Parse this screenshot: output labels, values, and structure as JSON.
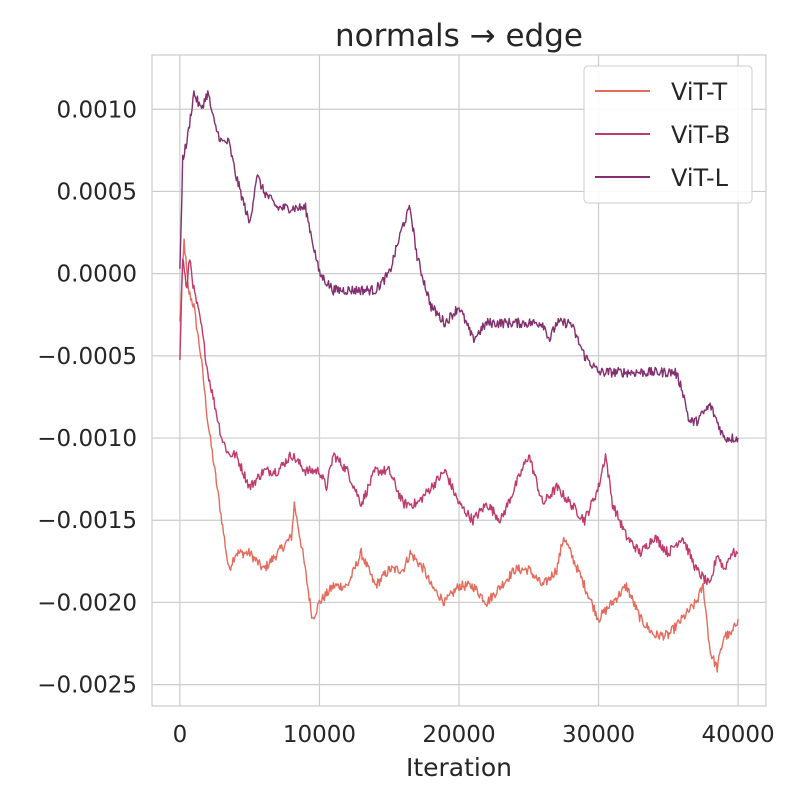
{
  "chart_data": {
    "type": "line",
    "title": "normals → edge",
    "xlabel": "Iteration",
    "ylabel": "",
    "xlim": [
      -2000,
      42000
    ],
    "ylim": [
      -0.00263,
      0.00133
    ],
    "xticks": [
      0,
      10000,
      20000,
      30000,
      40000
    ],
    "xtick_labels": [
      "0",
      "10000",
      "20000",
      "30000",
      "40000"
    ],
    "yticks": [
      0.001,
      0.0005,
      0.0,
      -0.0005,
      -0.001,
      -0.0015,
      -0.002,
      -0.0025
    ],
    "ytick_labels": [
      "0.0010",
      "0.0005",
      "0.0000",
      "−0.0005",
      "−0.0010",
      "−0.0015",
      "−0.0020",
      "−0.0025"
    ],
    "grid": true,
    "legend_position": "top-right",
    "series": [
      {
        "name": "ViT-T",
        "color": "#e56b5d",
        "points": [
          [
            0,
            -0.0003
          ],
          [
            300,
            0.0002
          ],
          [
            600,
            -0.0001
          ],
          [
            1000,
            -0.0002
          ],
          [
            1500,
            -0.0005
          ],
          [
            2000,
            -0.0009
          ],
          [
            2500,
            -0.0012
          ],
          [
            3000,
            -0.0015
          ],
          [
            3500,
            -0.0018
          ],
          [
            4000,
            -0.0017
          ],
          [
            5000,
            -0.0017
          ],
          [
            6000,
            -0.0018
          ],
          [
            7000,
            -0.0017
          ],
          [
            8000,
            -0.0016
          ],
          [
            8200,
            -0.0014
          ],
          [
            8800,
            -0.0017
          ],
          [
            9500,
            -0.0021
          ],
          [
            10000,
            -0.002
          ],
          [
            11000,
            -0.0019
          ],
          [
            12000,
            -0.0019
          ],
          [
            12500,
            -0.0018
          ],
          [
            13000,
            -0.0017
          ],
          [
            14000,
            -0.0019
          ],
          [
            15000,
            -0.0018
          ],
          [
            16000,
            -0.0018
          ],
          [
            16500,
            -0.0017
          ],
          [
            17500,
            -0.0018
          ],
          [
            18000,
            -0.0019
          ],
          [
            19000,
            -0.002
          ],
          [
            20000,
            -0.0019
          ],
          [
            21000,
            -0.0019
          ],
          [
            22000,
            -0.002
          ],
          [
            23000,
            -0.0019
          ],
          [
            24000,
            -0.0018
          ],
          [
            25000,
            -0.0018
          ],
          [
            26000,
            -0.0019
          ],
          [
            27000,
            -0.0018
          ],
          [
            27500,
            -0.0016
          ],
          [
            28500,
            -0.0018
          ],
          [
            29500,
            -0.002
          ],
          [
            30000,
            -0.0021
          ],
          [
            31000,
            -0.002
          ],
          [
            32000,
            -0.0019
          ],
          [
            33000,
            -0.0021
          ],
          [
            34000,
            -0.0022
          ],
          [
            35000,
            -0.0022
          ],
          [
            36000,
            -0.0021
          ],
          [
            37000,
            -0.002
          ],
          [
            37500,
            -0.0019
          ],
          [
            38000,
            -0.0023
          ],
          [
            38500,
            -0.0024
          ],
          [
            39000,
            -0.0022
          ],
          [
            39500,
            -0.0022
          ],
          [
            40000,
            -0.0021
          ]
        ]
      },
      {
        "name": "ViT-B",
        "color": "#c03a6b",
        "points": [
          [
            0,
            -0.0005
          ],
          [
            200,
            0.0001
          ],
          [
            500,
            -0.0001
          ],
          [
            700,
            0.0001
          ],
          [
            1000,
            -0.0001
          ],
          [
            1500,
            -0.0003
          ],
          [
            2000,
            -0.0006
          ],
          [
            2500,
            -0.0008
          ],
          [
            3000,
            -0.001
          ],
          [
            3500,
            -0.0011
          ],
          [
            4000,
            -0.0011
          ],
          [
            5000,
            -0.0013
          ],
          [
            6000,
            -0.0012
          ],
          [
            7000,
            -0.0012
          ],
          [
            8000,
            -0.0011
          ],
          [
            9000,
            -0.0012
          ],
          [
            10000,
            -0.0012
          ],
          [
            10500,
            -0.0013
          ],
          [
            11000,
            -0.0011
          ],
          [
            12000,
            -0.0012
          ],
          [
            13000,
            -0.0014
          ],
          [
            14000,
            -0.0012
          ],
          [
            15000,
            -0.0012
          ],
          [
            16000,
            -0.0014
          ],
          [
            17000,
            -0.0014
          ],
          [
            18000,
            -0.0013
          ],
          [
            19000,
            -0.0012
          ],
          [
            20000,
            -0.0014
          ],
          [
            21000,
            -0.0015
          ],
          [
            22000,
            -0.0014
          ],
          [
            23000,
            -0.0015
          ],
          [
            24000,
            -0.0013
          ],
          [
            25000,
            -0.0011
          ],
          [
            26000,
            -0.0014
          ],
          [
            27000,
            -0.0013
          ],
          [
            28000,
            -0.0014
          ],
          [
            29000,
            -0.0015
          ],
          [
            30000,
            -0.0013
          ],
          [
            30500,
            -0.0011
          ],
          [
            31000,
            -0.0014
          ],
          [
            32000,
            -0.0016
          ],
          [
            33000,
            -0.0017
          ],
          [
            34000,
            -0.0016
          ],
          [
            35000,
            -0.0017
          ],
          [
            36000,
            -0.0016
          ],
          [
            37000,
            -0.0018
          ],
          [
            38000,
            -0.0019
          ],
          [
            38500,
            -0.0017
          ],
          [
            39000,
            -0.0018
          ],
          [
            39500,
            -0.0017
          ],
          [
            40000,
            -0.0017
          ]
        ]
      },
      {
        "name": "ViT-L",
        "color": "#832e6e",
        "points": [
          [
            0,
            0.0
          ],
          [
            200,
            0.0007
          ],
          [
            500,
            0.0008
          ],
          [
            1000,
            0.0011
          ],
          [
            1500,
            0.001
          ],
          [
            2000,
            0.0011
          ],
          [
            2500,
            0.0009
          ],
          [
            3000,
            0.0008
          ],
          [
            3500,
            0.0008
          ],
          [
            4000,
            0.0006
          ],
          [
            5000,
            0.0003
          ],
          [
            5500,
            0.0006
          ],
          [
            6000,
            0.0005
          ],
          [
            7000,
            0.0004
          ],
          [
            8000,
            0.0004
          ],
          [
            9000,
            0.0004
          ],
          [
            9500,
            0.0002
          ],
          [
            10000,
            0.0
          ],
          [
            11000,
            -0.0001
          ],
          [
            12000,
            -0.0001
          ],
          [
            13000,
            -0.0001
          ],
          [
            14000,
            -0.0001
          ],
          [
            15000,
            0.0
          ],
          [
            16000,
            0.0003
          ],
          [
            16500,
            0.0004
          ],
          [
            17000,
            0.0001
          ],
          [
            18000,
            -0.0002
          ],
          [
            19000,
            -0.0003
          ],
          [
            20000,
            -0.0002
          ],
          [
            21000,
            -0.0004
          ],
          [
            22000,
            -0.0003
          ],
          [
            23000,
            -0.0003
          ],
          [
            24000,
            -0.0003
          ],
          [
            25000,
            -0.0003
          ],
          [
            26000,
            -0.0003
          ],
          [
            26500,
            -0.0004
          ],
          [
            27000,
            -0.0003
          ],
          [
            28000,
            -0.0003
          ],
          [
            29000,
            -0.0005
          ],
          [
            30000,
            -0.0006
          ],
          [
            31000,
            -0.0006
          ],
          [
            32000,
            -0.0006
          ],
          [
            33000,
            -0.0006
          ],
          [
            34000,
            -0.0006
          ],
          [
            35000,
            -0.0006
          ],
          [
            35500,
            -0.0006
          ],
          [
            36000,
            -0.0007
          ],
          [
            36500,
            -0.0009
          ],
          [
            37000,
            -0.0009
          ],
          [
            38000,
            -0.0008
          ],
          [
            38500,
            -0.0009
          ],
          [
            39000,
            -0.001
          ],
          [
            40000,
            -0.001
          ]
        ]
      }
    ]
  }
}
